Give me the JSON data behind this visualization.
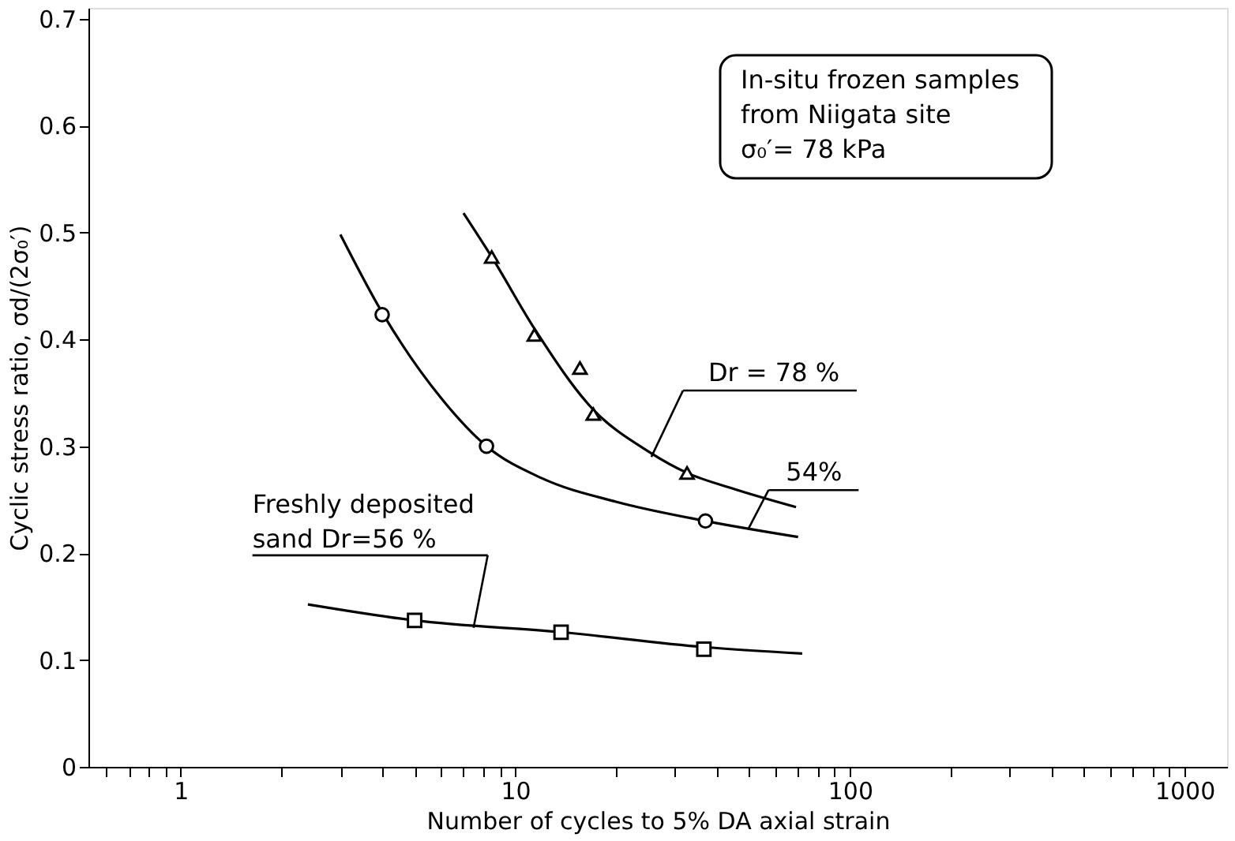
{
  "chart_data": {
    "type": "line",
    "xlabel": "Number of cycles to 5% DA axial strain",
    "ylabel": "Cyclic stress ratio,  σd/(2σ₀′)",
    "xlim": [
      0.53,
      1340
    ],
    "ylim": [
      0,
      0.71
    ],
    "log": "x",
    "grid": false,
    "xticks": [
      {
        "value": 0.6,
        "label": null
      },
      {
        "value": 0.7,
        "label": null
      },
      {
        "value": 0.8,
        "label": null
      },
      {
        "value": 0.9,
        "label": null
      },
      1,
      {
        "value": 2,
        "label": null
      },
      {
        "value": 3,
        "label": null
      },
      {
        "value": 4,
        "label": null
      },
      {
        "value": 5,
        "label": null
      },
      {
        "value": 6,
        "label": null
      },
      {
        "value": 7,
        "label": null
      },
      {
        "value": 8,
        "label": null
      },
      {
        "value": 9,
        "label": null
      },
      10,
      {
        "value": 20,
        "label": null
      },
      {
        "value": 30,
        "label": null
      },
      {
        "value": 40,
        "label": null
      },
      {
        "value": 50,
        "label": null
      },
      {
        "value": 60,
        "label": null
      },
      {
        "value": 70,
        "label": null
      },
      {
        "value": 80,
        "label": null
      },
      {
        "value": 90,
        "label": null
      },
      100,
      {
        "value": 200,
        "label": null
      },
      {
        "value": 300,
        "label": null
      },
      {
        "value": 400,
        "label": null
      },
      {
        "value": 500,
        "label": null
      },
      {
        "value": 600,
        "label": null
      },
      {
        "value": 700,
        "label": null
      },
      {
        "value": 800,
        "label": null
      },
      {
        "value": 900,
        "label": null
      },
      1000
    ],
    "yticks": [
      0,
      0.1,
      0.2,
      0.3,
      0.4,
      0.5,
      0.6,
      0.7
    ],
    "series": [
      {
        "type": "line",
        "color": "#000000",
        "marker": "none",
        "x": [
          7.0,
          8.5,
          11.4,
          17,
          25,
          32.6,
          45,
          69
        ],
        "values": [
          0.518,
          0.477,
          0.41,
          0.335,
          0.295,
          0.275,
          0.26,
          0.243
        ]
      },
      {
        "type": "line",
        "color": "#000000",
        "marker": "none",
        "x": [
          3.0,
          4.0,
          6,
          8.2,
          12,
          20,
          37,
          70
        ],
        "values": [
          0.498,
          0.425,
          0.345,
          0.3,
          0.27,
          0.248,
          0.23,
          0.215
        ]
      },
      {
        "type": "line",
        "color": "#000000",
        "marker": "none",
        "x": [
          2.4,
          5,
          13.7,
          36.6,
          72
        ],
        "values": [
          0.152,
          0.137,
          0.126,
          0.112,
          0.106
        ]
      },
      {
        "type": "scatter",
        "color": "#000000",
        "marker": "triangle",
        "x": [
          8.5,
          11.4,
          15.6,
          17.1,
          32.6
        ],
        "values": [
          0.477,
          0.404,
          0.373,
          0.33,
          0.275
        ]
      },
      {
        "type": "scatter",
        "color": "#000000",
        "marker": "circle",
        "x": [
          4.0,
          8.2,
          37
        ],
        "values": [
          0.423,
          0.3,
          0.23
        ]
      },
      {
        "type": "scatter",
        "color": "#000000",
        "marker": "square",
        "x": [
          5.0,
          13.7,
          36.6
        ],
        "values": [
          0.137,
          0.126,
          0.11
        ]
      }
    ],
    "annotations": [
      "In-situ frozen samples\nfrom Niigata site\nσ₀′= 78 kPa",
      {
        "text": "Dr = 78 %",
        "x": 25.5,
        "y": 0.29
      },
      {
        "text": "54%",
        "x": 49.6,
        "y": 0.222
      },
      {
        "text": "Freshly deposited\nsand   Dr=56 %",
        "x": 7.5,
        "y": 0.13
      }
    ]
  }
}
